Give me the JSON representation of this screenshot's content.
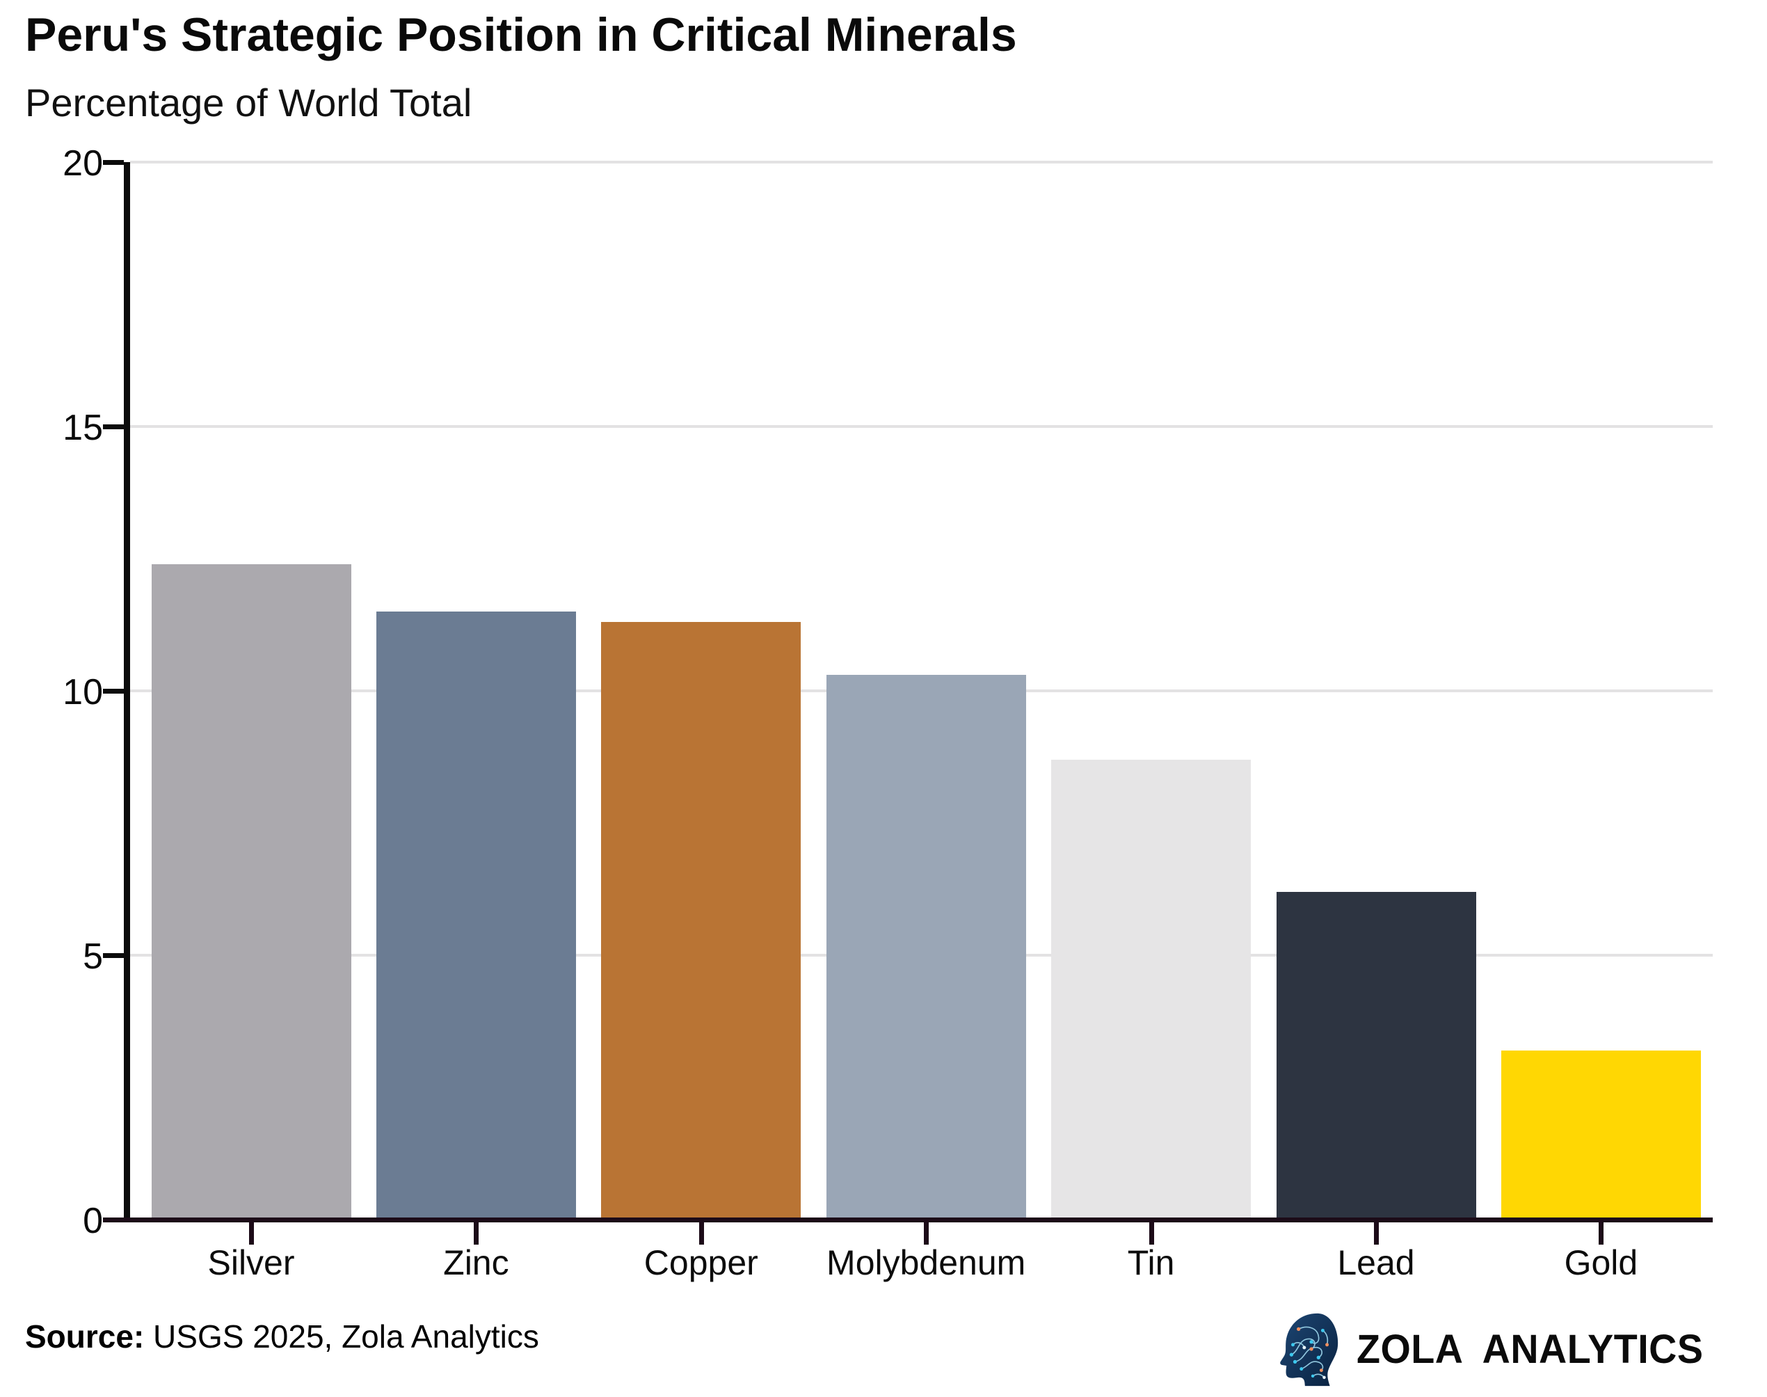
{
  "title": "Peru's Strategic Position in Critical Minerals",
  "subtitle": "Percentage of World Total",
  "source": {
    "label": "Source:",
    "text": " USGS 2025, Zola Analytics"
  },
  "logo": {
    "brand": "ZOLA ANALYTICS",
    "icon": "circuit-head-icon",
    "head_color": "#123b66",
    "accent_cyan": "#3cc8ee",
    "accent_orange": "#ef8e5e"
  },
  "chart_data": {
    "type": "bar",
    "title": "Peru's Strategic Position in Critical Minerals",
    "ylabel": "Percentage of World Total",
    "xlabel": "",
    "categories": [
      "Silver",
      "Zinc",
      "Copper",
      "Molybdenum",
      "Tin",
      "Lead",
      "Gold"
    ],
    "values": [
      12.4,
      11.5,
      11.3,
      10.3,
      8.7,
      6.2,
      3.2
    ],
    "bar_colors": [
      "#aba9ae",
      "#6b7c93",
      "#b97434",
      "#9aa6b6",
      "#e6e5e6",
      "#2d3441",
      "#ffd703"
    ],
    "ylim": [
      0,
      20
    ],
    "yticks": [
      "0",
      "5",
      "10",
      "15",
      "20"
    ],
    "grid": "horizontal-on",
    "legend": "none",
    "grid_color": "#e3e2e3",
    "axis_color": "#0b0b0b",
    "x_axis_color": "#1c0b18"
  }
}
